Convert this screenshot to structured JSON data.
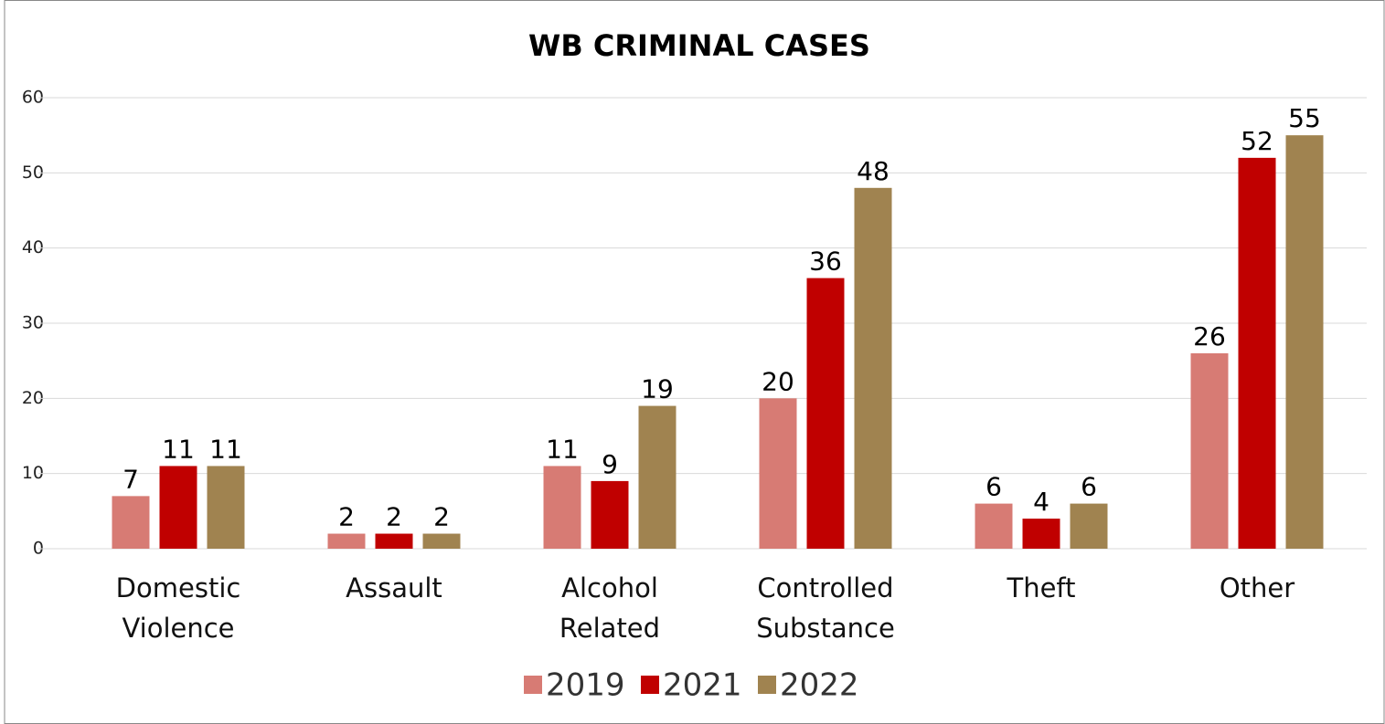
{
  "chart_data": {
    "type": "bar",
    "title": "WB CRIMINAL CASES",
    "categories": [
      "Domestic Violence",
      "Assault",
      "Alcohol Related",
      "Controlled Substance",
      "Theft",
      "Other"
    ],
    "series": [
      {
        "name": "2019",
        "color": "#d77b74",
        "values": [
          7,
          2,
          11,
          20,
          6,
          26
        ]
      },
      {
        "name": "2021",
        "color": "#c00000",
        "values": [
          11,
          2,
          9,
          36,
          4,
          52
        ]
      },
      {
        "name": "2022",
        "color": "#a08350",
        "values": [
          11,
          2,
          19,
          48,
          6,
          55
        ]
      }
    ],
    "ylim": [
      0,
      60
    ],
    "yticks": [
      0,
      10,
      20,
      30,
      40,
      50,
      60
    ],
    "grid": true,
    "legend": "bottom"
  }
}
